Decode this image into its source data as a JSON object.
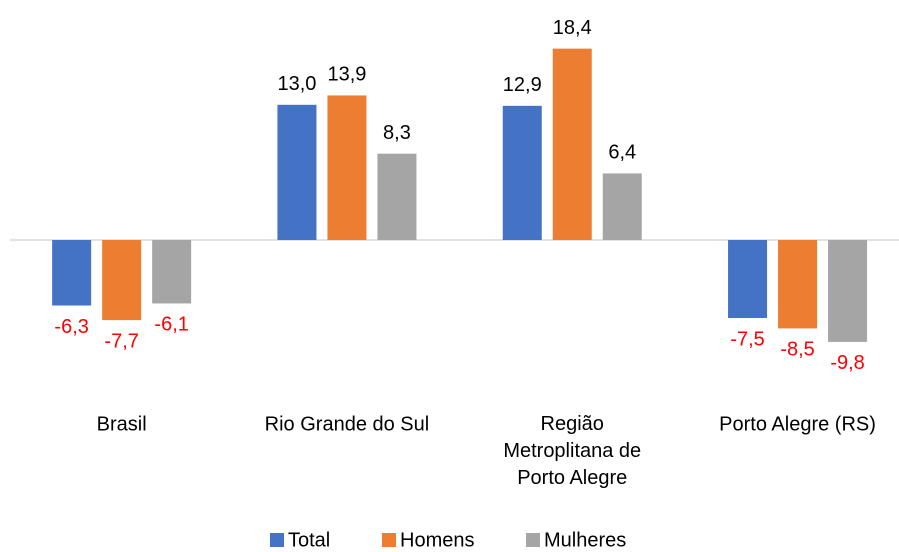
{
  "chart_data": {
    "type": "bar",
    "categories": [
      "Brasil",
      "Rio Grande do Sul",
      "Região Metroplitana de Porto Alegre",
      "Porto Alegre (RS)"
    ],
    "series": [
      {
        "name": "Total",
        "color": "#4472c4",
        "values": [
          -6.3,
          13.0,
          12.9,
          -7.5
        ],
        "value_labels": [
          "-6,3",
          "13,0",
          "12,9",
          "-7,5"
        ]
      },
      {
        "name": "Homens",
        "color": "#ed7d31",
        "values": [
          -7.7,
          13.9,
          18.4,
          -8.5
        ],
        "value_labels": [
          "-7,7",
          "13,9",
          "18,4",
          "-8,5"
        ]
      },
      {
        "name": "Mulheres",
        "color": "#a5a5a5",
        "values": [
          -6.1,
          8.3,
          6.4,
          -9.8
        ],
        "value_labels": [
          "-6,1",
          "8,3",
          "6,4",
          "-9,8"
        ]
      }
    ],
    "negative_label_color": "#ff0000",
    "positive_label_color": "#000000",
    "legend": "bottom"
  }
}
